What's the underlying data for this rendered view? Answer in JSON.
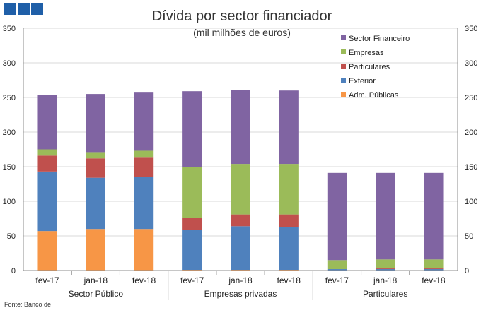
{
  "logo": {
    "squares": 3,
    "color": "#1f5fa8"
  },
  "source_note": "Fonte: Banco de",
  "chart_data": {
    "type": "stacked-bar",
    "title": "Dívida por sector financiador",
    "subtitle": "(mil milhões de euros)",
    "ylim": [
      0,
      350
    ],
    "yticks": [
      0,
      50,
      100,
      150,
      200,
      250,
      300,
      350
    ],
    "grid": true,
    "legend_position": "top-right",
    "groups": [
      {
        "label": "Sector Público",
        "categories": [
          "fev-17",
          "jan-18",
          "fev-18"
        ]
      },
      {
        "label": "Empresas privadas",
        "categories": [
          "fev-17",
          "jan-18",
          "fev-18"
        ]
      },
      {
        "label": "Particulares",
        "categories": [
          "fev-17",
          "jan-18",
          "fev-18"
        ]
      }
    ],
    "series": [
      {
        "name": "Adm. Públicas",
        "color": "#f79646",
        "values": [
          57,
          60,
          60,
          1,
          1,
          1,
          0,
          0,
          0
        ]
      },
      {
        "name": "Exterior",
        "color": "#4f81bd",
        "values": [
          86,
          74,
          75,
          58,
          63,
          62,
          2,
          2,
          2
        ]
      },
      {
        "name": "Particulares",
        "color": "#c0504d",
        "values": [
          23,
          28,
          28,
          17,
          17,
          18,
          0,
          1,
          1
        ]
      },
      {
        "name": "Empresas",
        "color": "#9bbb59",
        "values": [
          9,
          9,
          10,
          73,
          73,
          73,
          13,
          13,
          13
        ]
      },
      {
        "name": "Sector Financeiro",
        "color": "#8064a2",
        "values": [
          79,
          84,
          85,
          110,
          107,
          106,
          126,
          125,
          125
        ]
      }
    ],
    "legend_order": [
      "Sector Financeiro",
      "Empresas",
      "Particulares",
      "Exterior",
      "Adm. Públicas"
    ]
  }
}
